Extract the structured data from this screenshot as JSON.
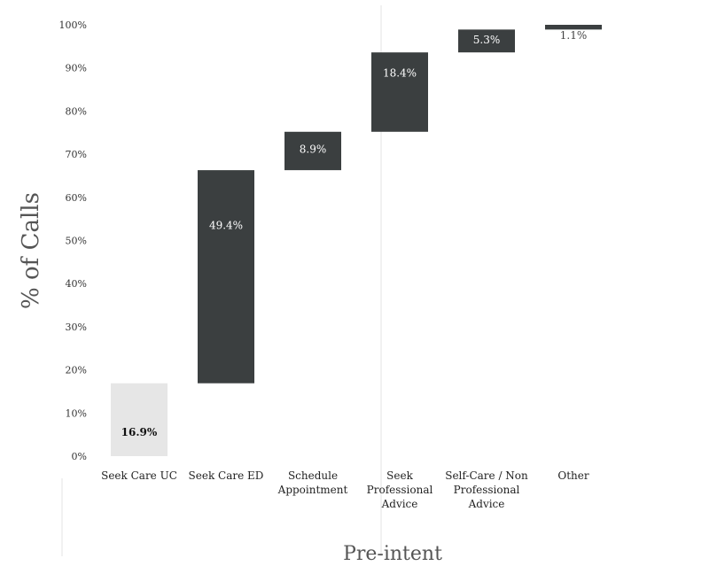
{
  "chart_data": {
    "type": "bar",
    "subtype": "waterfall",
    "xlabel": "Pre-intent",
    "ylabel": "% of Calls",
    "ylim": [
      0,
      100
    ],
    "yticks": [
      0,
      10,
      20,
      30,
      40,
      50,
      60,
      70,
      80,
      90,
      100
    ],
    "ytick_labels": [
      "0%",
      "10%",
      "20%",
      "30%",
      "40%",
      "50%",
      "60%",
      "70%",
      "80%",
      "90%",
      "100%"
    ],
    "categories": [
      [
        "Seek Care UC"
      ],
      [
        "Seek Care ED"
      ],
      [
        "Schedule",
        "Appointment"
      ],
      [
        "Seek",
        "Professional",
        "Advice"
      ],
      [
        "Self-Care / Non",
        "Professional",
        "Advice"
      ],
      [
        "Other"
      ]
    ],
    "values": [
      16.9,
      49.4,
      8.9,
      18.4,
      5.3,
      1.1
    ],
    "data_labels": [
      "16.9%",
      "49.4%",
      "8.9%",
      "18.4%",
      "5.3%",
      "1.1%"
    ],
    "colors": {
      "first": "#e6e6e6",
      "bars": "#3b3f40",
      "label_on_dark": "#ffffff",
      "label_on_light": "#111111",
      "grid": "#e3e3e3"
    },
    "grid": false
  }
}
